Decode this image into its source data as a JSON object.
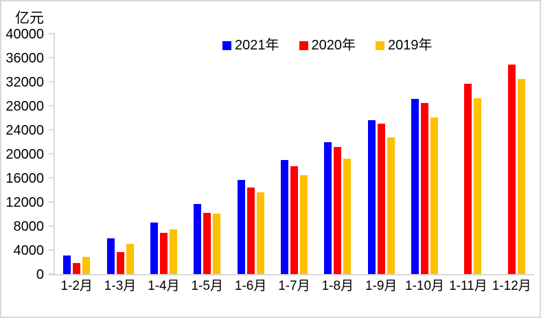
{
  "chart_data": {
    "type": "bar",
    "unit_label": "亿元",
    "categories": [
      "1-2月",
      "1-3月",
      "1-4月",
      "1-5月",
      "1-6月",
      "1-7月",
      "1-8月",
      "1-9月",
      "1-10月",
      "1-11月",
      "1-12月"
    ],
    "series": [
      {
        "name": "2021年",
        "color": "#0000FF",
        "values": [
          3100,
          5900,
          8600,
          11600,
          15700,
          19000,
          21900,
          25600,
          29100,
          null,
          null
        ]
      },
      {
        "name": "2020年",
        "color": "#FF0000",
        "values": [
          1800,
          3700,
          6800,
          10200,
          14400,
          17900,
          21100,
          25000,
          28400,
          31600,
          34800
        ]
      },
      {
        "name": "2019年",
        "color": "#FFC000",
        "values": [
          2800,
          5000,
          7400,
          10100,
          13600,
          16400,
          19200,
          22800,
          26100,
          29200,
          32500
        ]
      }
    ],
    "ylim": [
      0,
      40000
    ],
    "ytick_interval": 4000,
    "ytick_labels": [
      "0",
      "4000",
      "8000",
      "12000",
      "16000",
      "20000",
      "24000",
      "28000",
      "32000",
      "36000",
      "40000"
    ],
    "grid": false,
    "legend_position": "top"
  },
  "colors": {
    "axis": "#D9D9D9",
    "frame_border": "#D9D9D9",
    "background": "#FFFFFF",
    "text": "#000000"
  }
}
